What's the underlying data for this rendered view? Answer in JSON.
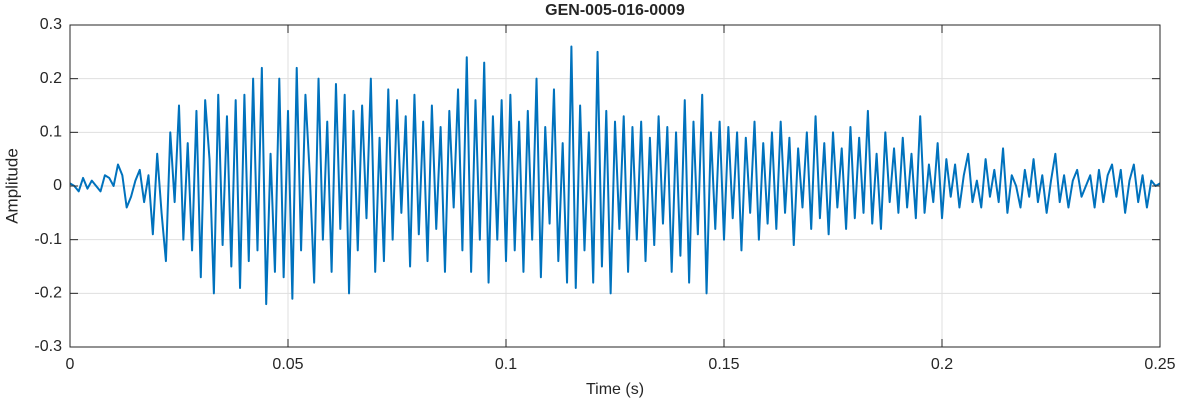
{
  "chart_data": {
    "type": "line",
    "title": "GEN-005-016-0009",
    "xlabel": "Time (s)",
    "ylabel": "Amplitude",
    "xlim": [
      0,
      0.25
    ],
    "ylim": [
      -0.3,
      0.3
    ],
    "xticks": [
      0,
      0.05,
      0.1,
      0.15,
      0.2,
      0.25
    ],
    "yticks": [
      -0.3,
      -0.2,
      -0.1,
      0,
      0.1,
      0.2,
      0.3
    ],
    "grid": true,
    "x": [
      0,
      0.001,
      0.002,
      0.003,
      0.004,
      0.005,
      0.006,
      0.007,
      0.008,
      0.009,
      0.01,
      0.011,
      0.012,
      0.013,
      0.014,
      0.015,
      0.016,
      0.017,
      0.018,
      0.019,
      0.02,
      0.021,
      0.022,
      0.023,
      0.024,
      0.025,
      0.026,
      0.027,
      0.028,
      0.029,
      0.03,
      0.031,
      0.032,
      0.033,
      0.034,
      0.035,
      0.036,
      0.037,
      0.038,
      0.039,
      0.04,
      0.041,
      0.042,
      0.043,
      0.044,
      0.045,
      0.046,
      0.047,
      0.048,
      0.049,
      0.05,
      0.051,
      0.052,
      0.053,
      0.054,
      0.055,
      0.056,
      0.057,
      0.058,
      0.059,
      0.06,
      0.061,
      0.062,
      0.063,
      0.064,
      0.065,
      0.066,
      0.067,
      0.068,
      0.069,
      0.07,
      0.071,
      0.072,
      0.073,
      0.074,
      0.075,
      0.076,
      0.077,
      0.078,
      0.079,
      0.08,
      0.081,
      0.082,
      0.083,
      0.084,
      0.085,
      0.086,
      0.087,
      0.088,
      0.089,
      0.09,
      0.091,
      0.092,
      0.093,
      0.094,
      0.095,
      0.096,
      0.097,
      0.098,
      0.099,
      0.1,
      0.101,
      0.102,
      0.103,
      0.104,
      0.105,
      0.106,
      0.107,
      0.108,
      0.109,
      0.11,
      0.111,
      0.112,
      0.113,
      0.114,
      0.115,
      0.116,
      0.117,
      0.118,
      0.119,
      0.12,
      0.121,
      0.122,
      0.123,
      0.124,
      0.125,
      0.126,
      0.127,
      0.128,
      0.129,
      0.13,
      0.131,
      0.132,
      0.133,
      0.134,
      0.135,
      0.136,
      0.137,
      0.138,
      0.139,
      0.14,
      0.141,
      0.142,
      0.143,
      0.144,
      0.145,
      0.146,
      0.147,
      0.148,
      0.149,
      0.15,
      0.151,
      0.152,
      0.153,
      0.154,
      0.155,
      0.156,
      0.157,
      0.158,
      0.159,
      0.16,
      0.161,
      0.162,
      0.163,
      0.164,
      0.165,
      0.166,
      0.167,
      0.168,
      0.169,
      0.17,
      0.171,
      0.172,
      0.173,
      0.174,
      0.175,
      0.176,
      0.177,
      0.178,
      0.179,
      0.18,
      0.181,
      0.182,
      0.183,
      0.184,
      0.185,
      0.186,
      0.187,
      0.188,
      0.189,
      0.19,
      0.191,
      0.192,
      0.193,
      0.194,
      0.195,
      0.196,
      0.197,
      0.198,
      0.199,
      0.2,
      0.201,
      0.202,
      0.203,
      0.204,
      0.205,
      0.206,
      0.207,
      0.208,
      0.209,
      0.21,
      0.211,
      0.212,
      0.213,
      0.214,
      0.215,
      0.216,
      0.217,
      0.218,
      0.219,
      0.22,
      0.221,
      0.222,
      0.223,
      0.224,
      0.225,
      0.226,
      0.227,
      0.228,
      0.229,
      0.23,
      0.231,
      0.232,
      0.233,
      0.234,
      0.235,
      0.236,
      0.237,
      0.238,
      0.239,
      0.24,
      0.241,
      0.242,
      0.243,
      0.244,
      0.245,
      0.246,
      0.247,
      0.248,
      0.249,
      0.25
    ],
    "series": [
      {
        "color": "#0072bd",
        "values": [
          0.005,
          0.0,
          -0.01,
          0.015,
          -0.005,
          0.01,
          0.0,
          -0.01,
          0.02,
          0.015,
          0.0,
          0.04,
          0.02,
          -0.04,
          -0.02,
          0.01,
          0.03,
          -0.03,
          0.02,
          -0.09,
          0.06,
          -0.05,
          -0.14,
          0.1,
          -0.03,
          0.15,
          -0.1,
          0.08,
          -0.12,
          0.14,
          -0.17,
          0.16,
          0.05,
          -0.2,
          0.17,
          -0.11,
          0.13,
          -0.15,
          0.16,
          -0.19,
          0.17,
          -0.14,
          0.2,
          -0.12,
          0.22,
          -0.22,
          0.06,
          -0.16,
          0.2,
          -0.17,
          0.14,
          -0.21,
          0.22,
          -0.12,
          0.17,
          0.02,
          -0.18,
          0.2,
          -0.1,
          0.12,
          -0.16,
          0.19,
          -0.08,
          0.17,
          -0.2,
          0.14,
          -0.12,
          0.15,
          -0.06,
          0.2,
          -0.16,
          0.09,
          -0.14,
          0.18,
          -0.1,
          0.16,
          -0.05,
          0.13,
          -0.15,
          0.17,
          -0.09,
          0.12,
          -0.14,
          0.15,
          -0.08,
          0.11,
          -0.16,
          0.14,
          -0.04,
          0.18,
          -0.12,
          0.24,
          -0.16,
          0.16,
          -0.1,
          0.23,
          -0.18,
          0.13,
          -0.1,
          0.16,
          -0.14,
          0.17,
          -0.12,
          0.12,
          -0.16,
          0.14,
          -0.1,
          0.2,
          -0.17,
          0.11,
          -0.07,
          0.18,
          -0.14,
          0.08,
          -0.18,
          0.26,
          -0.19,
          0.15,
          -0.12,
          0.1,
          -0.18,
          0.25,
          -0.15,
          0.14,
          -0.2,
          0.12,
          -0.08,
          0.13,
          -0.16,
          0.11,
          -0.1,
          0.12,
          -0.14,
          0.09,
          -0.11,
          0.13,
          -0.07,
          0.11,
          -0.16,
          0.1,
          -0.13,
          0.16,
          -0.18,
          0.12,
          -0.09,
          0.17,
          -0.2,
          0.1,
          -0.08,
          0.12,
          -0.1,
          0.11,
          -0.06,
          0.1,
          -0.12,
          0.09,
          -0.05,
          0.12,
          -0.1,
          0.08,
          -0.07,
          0.1,
          -0.08,
          0.12,
          -0.05,
          0.09,
          -0.11,
          0.07,
          -0.04,
          0.1,
          -0.08,
          0.13,
          -0.06,
          0.08,
          -0.09,
          0.1,
          -0.04,
          0.07,
          -0.08,
          0.11,
          -0.06,
          0.09,
          -0.05,
          0.14,
          -0.07,
          0.06,
          -0.08,
          0.1,
          -0.03,
          0.07,
          -0.05,
          0.09,
          -0.04,
          0.06,
          -0.06,
          0.13,
          -0.05,
          0.04,
          -0.03,
          0.08,
          -0.06,
          0.05,
          -0.02,
          0.04,
          -0.04,
          0.02,
          0.06,
          -0.03,
          0.01,
          -0.04,
          0.05,
          -0.02,
          0.03,
          -0.03,
          0.07,
          -0.05,
          0.02,
          0.0,
          -0.04,
          0.03,
          -0.02,
          0.05,
          -0.03,
          0.02,
          -0.05,
          0.01,
          0.06,
          -0.03,
          0.02,
          -0.04,
          0.01,
          0.03,
          -0.02,
          0.0,
          0.02,
          -0.04,
          0.03,
          -0.03,
          0.02,
          0.04,
          -0.02,
          0.03,
          -0.05,
          0.01,
          0.04,
          -0.03,
          0.02,
          -0.04,
          0.01,
          0.0,
          0.005
        ]
      }
    ]
  }
}
